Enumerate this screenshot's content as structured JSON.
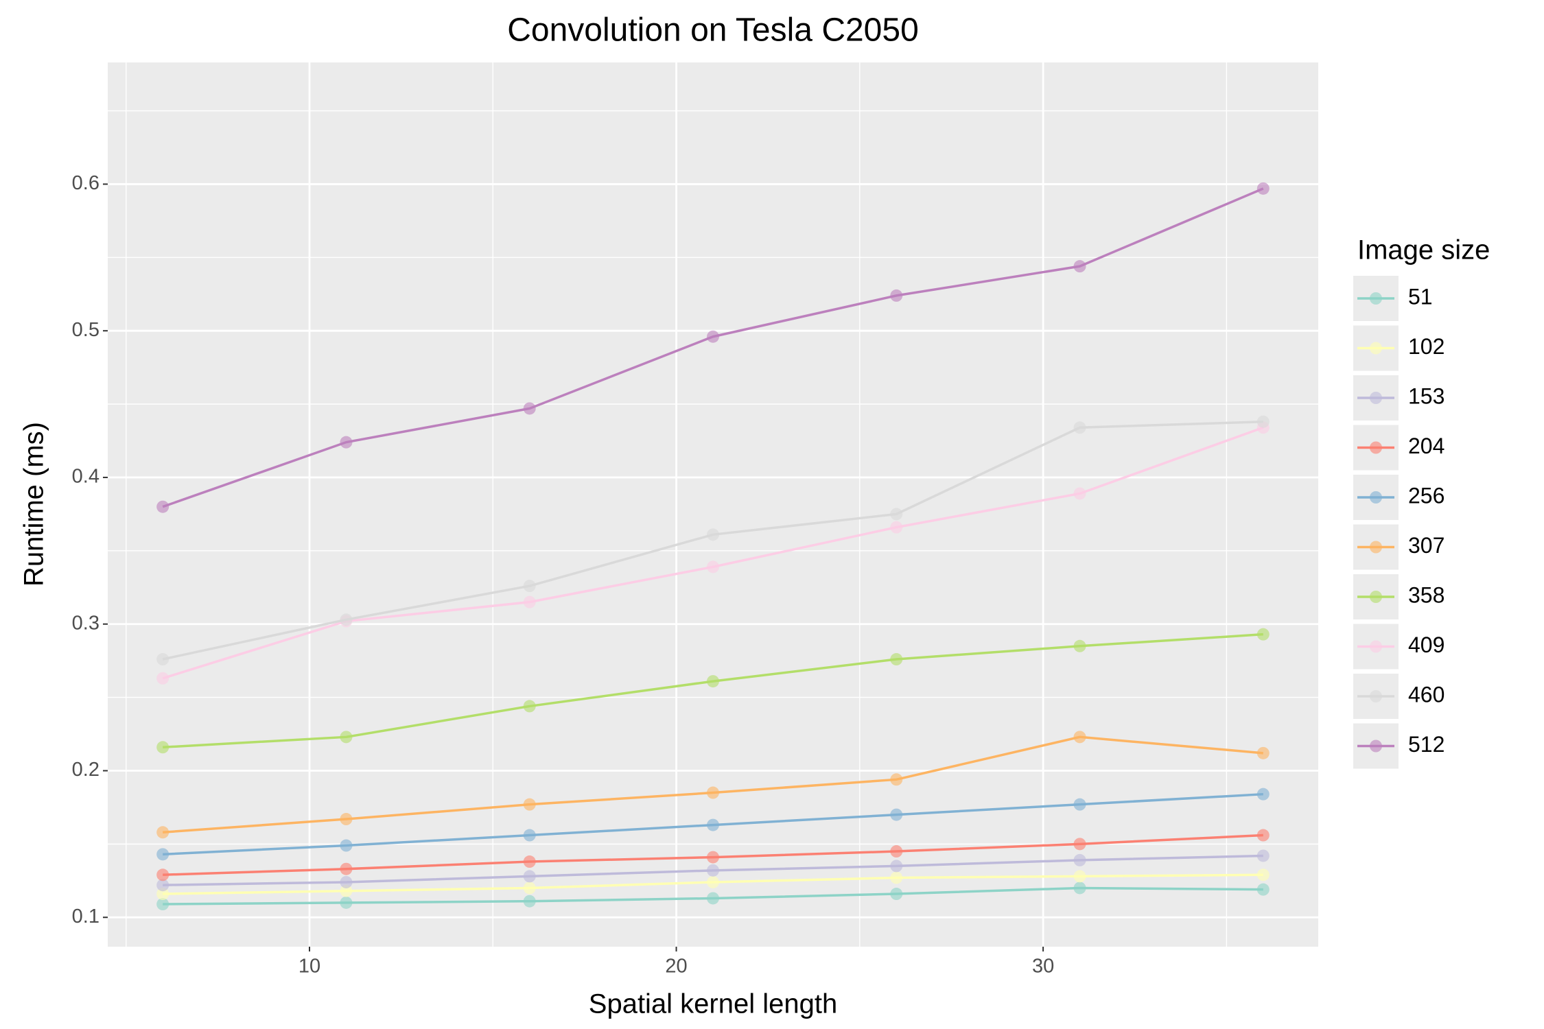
{
  "chart_data": {
    "type": "line",
    "title": "Convolution on Tesla C2050",
    "x_label": "Spatial kernel length",
    "y_label": "Runtime (ms)",
    "legend_title": "Image size",
    "legend_position": "right",
    "grid": true,
    "x": [
      6,
      11,
      16,
      21,
      26,
      31,
      36
    ],
    "xlim": [
      4.5,
      37.5
    ],
    "xticks": [
      10,
      20,
      30
    ],
    "x_minor_ticks": [
      5,
      15,
      25,
      35
    ],
    "ylim": [
      0.08,
      0.683
    ],
    "yticks": [
      0.1,
      0.2,
      0.3,
      0.4,
      0.5,
      0.6
    ],
    "y_minor_ticks": [
      0.15,
      0.25,
      0.35,
      0.45,
      0.55,
      0.65
    ],
    "series": [
      {
        "name": "51",
        "color": "#8dd3c7",
        "values": [
          0.109,
          0.11,
          0.111,
          0.113,
          0.116,
          0.12,
          0.119
        ]
      },
      {
        "name": "102",
        "color": "#ffffb3",
        "values": [
          0.116,
          0.118,
          0.12,
          0.124,
          0.127,
          0.128,
          0.129
        ]
      },
      {
        "name": "153",
        "color": "#bebada",
        "values": [
          0.122,
          0.124,
          0.128,
          0.132,
          0.135,
          0.139,
          0.142
        ]
      },
      {
        "name": "204",
        "color": "#fb8072",
        "values": [
          0.129,
          0.133,
          0.138,
          0.141,
          0.145,
          0.15,
          0.156
        ]
      },
      {
        "name": "256",
        "color": "#80b1d3",
        "values": [
          0.143,
          0.149,
          0.156,
          0.163,
          0.17,
          0.177,
          0.184
        ]
      },
      {
        "name": "307",
        "color": "#fdb462",
        "values": [
          0.158,
          0.167,
          0.177,
          0.185,
          0.194,
          0.223,
          0.212
        ]
      },
      {
        "name": "358",
        "color": "#b3de69",
        "values": [
          0.216,
          0.223,
          0.244,
          0.261,
          0.276,
          0.285,
          0.293
        ]
      },
      {
        "name": "409",
        "color": "#fccde5",
        "values": [
          0.263,
          0.302,
          0.315,
          0.339,
          0.366,
          0.389,
          0.434
        ]
      },
      {
        "name": "460",
        "color": "#d9d9d9",
        "values": [
          0.276,
          0.303,
          0.326,
          0.361,
          0.375,
          0.434,
          0.438
        ]
      },
      {
        "name": "512",
        "color": "#bc80bd",
        "values": [
          0.38,
          0.424,
          0.447,
          0.496,
          0.524,
          0.544,
          0.597
        ]
      }
    ]
  }
}
